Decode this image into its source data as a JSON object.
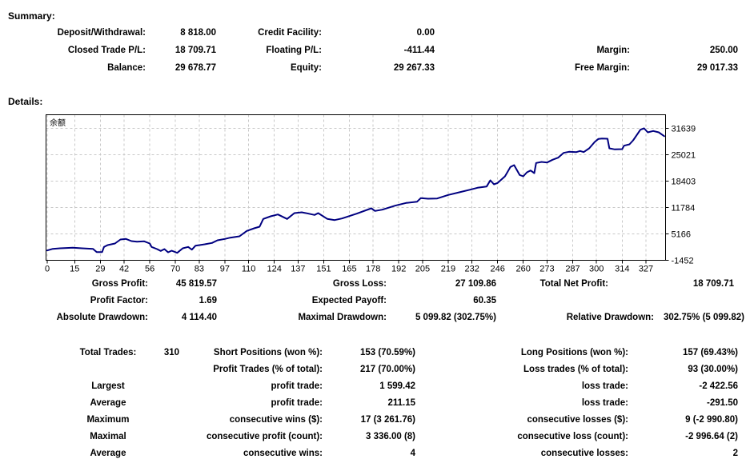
{
  "summary": {
    "heading": "Summary:",
    "rows": [
      [
        "Deposit/Withdrawal:",
        "8 818.00",
        "Credit Facility:",
        "0.00",
        "",
        ""
      ],
      [
        "Closed Trade P/L:",
        "18 709.71",
        "Floating P/L:",
        "-411.44",
        "Margin:",
        "250.00"
      ],
      [
        "Balance:",
        "29 678.77",
        "Equity:",
        "29 267.33",
        "Free Margin:",
        "29 017.33"
      ]
    ]
  },
  "details": {
    "heading": "Details:"
  },
  "results": {
    "rows": [
      [
        "Gross Profit:",
        "45 819.57",
        "Gross Loss:",
        "27 109.86",
        "Total Net Profit:",
        "18 709.71"
      ],
      [
        "Profit Factor:",
        "1.69",
        "Expected Payoff:",
        "60.35",
        "",
        ""
      ],
      [
        "Absolute Drawdown:",
        "4 114.40",
        "Maximal Drawdown:",
        "5 099.82 (302.75%)",
        "Relative Drawdown:",
        "302.75% (5 099.82)"
      ]
    ]
  },
  "trades": {
    "rows": [
      [
        "Total Trades:",
        "310",
        "Short Positions (won %):",
        "153 (70.59%)",
        "Long Positions (won %):",
        "157 (69.43%)"
      ],
      [
        "",
        "",
        "Profit Trades (% of total):",
        "217 (70.00%)",
        "Loss trades (% of total):",
        "93 (30.00%)"
      ],
      [
        "Largest",
        "",
        "profit trade:",
        "1 599.42",
        "loss trade:",
        "-2 422.56"
      ],
      [
        "Average",
        "",
        "profit trade:",
        "211.15",
        "loss trade:",
        "-291.50"
      ],
      [
        "Maximum",
        "",
        "consecutive wins ($):",
        "17 (3 261.76)",
        "consecutive losses ($):",
        "9 (-2 990.80)"
      ],
      [
        "Maximal",
        "",
        "consecutive profit (count):",
        "3 336.00 (8)",
        "consecutive loss (count):",
        "-2 996.64 (2)"
      ],
      [
        "Average",
        "",
        "consecutive wins:",
        "4",
        "consecutive losses:",
        "2"
      ]
    ]
  },
  "chart_data": {
    "type": "line",
    "title": "余额",
    "xlabel": "",
    "ylabel": "",
    "legend": "none",
    "grid": "dashed",
    "line_color": "#000080",
    "grid_color": "#c8c8c8",
    "x_ticks": [
      0,
      15,
      29,
      42,
      56,
      70,
      83,
      97,
      110,
      124,
      137,
      151,
      165,
      178,
      192,
      205,
      219,
      232,
      246,
      260,
      273,
      287,
      300,
      314,
      327
    ],
    "y_ticks": [
      31639,
      25021,
      18403,
      11784,
      5166,
      -1452
    ],
    "xlim": [
      0,
      337
    ],
    "ylim": [
      -1452,
      35048
    ],
    "series": [
      {
        "name": "余额",
        "points": [
          [
            0,
            1015
          ],
          [
            3,
            1420
          ],
          [
            7,
            1560
          ],
          [
            14,
            1700
          ],
          [
            19,
            1560
          ],
          [
            25,
            1420
          ],
          [
            27,
            615
          ],
          [
            30,
            615
          ],
          [
            31,
            1900
          ],
          [
            33,
            2360
          ],
          [
            37,
            2760
          ],
          [
            40,
            3760
          ],
          [
            43,
            3900
          ],
          [
            46,
            3360
          ],
          [
            49,
            3220
          ],
          [
            53,
            3300
          ],
          [
            56,
            2760
          ],
          [
            57,
            1900
          ],
          [
            60,
            1360
          ],
          [
            62,
            900
          ],
          [
            64,
            1360
          ],
          [
            66,
            550
          ],
          [
            68,
            955
          ],
          [
            71,
            415
          ],
          [
            74,
            1560
          ],
          [
            77,
            1900
          ],
          [
            79,
            1215
          ],
          [
            81,
            2220
          ],
          [
            86,
            2560
          ],
          [
            90,
            2900
          ],
          [
            93,
            3560
          ],
          [
            97,
            3900
          ],
          [
            100,
            4225
          ],
          [
            105,
            4565
          ],
          [
            109,
            5910
          ],
          [
            113,
            6570
          ],
          [
            116,
            6970
          ],
          [
            118,
            8915
          ],
          [
            122,
            9580
          ],
          [
            126,
            10040
          ],
          [
            131,
            8915
          ],
          [
            135,
            10380
          ],
          [
            139,
            10580
          ],
          [
            142,
            10320
          ],
          [
            146,
            9920
          ],
          [
            148,
            10380
          ],
          [
            153,
            8915
          ],
          [
            157,
            8635
          ],
          [
            161,
            9035
          ],
          [
            169,
            10240
          ],
          [
            177,
            11580
          ],
          [
            179,
            10920
          ],
          [
            183,
            11240
          ],
          [
            190,
            12245
          ],
          [
            196,
            12925
          ],
          [
            202,
            13250
          ],
          [
            204,
            14130
          ],
          [
            208,
            13990
          ],
          [
            213,
            14050
          ],
          [
            219,
            14930
          ],
          [
            225,
            15595
          ],
          [
            231,
            16255
          ],
          [
            235,
            16735
          ],
          [
            240,
            17060
          ],
          [
            242,
            18600
          ],
          [
            244,
            17600
          ],
          [
            246,
            17940
          ],
          [
            250,
            19605
          ],
          [
            253,
            21950
          ],
          [
            255,
            22415
          ],
          [
            258,
            19945
          ],
          [
            260,
            19605
          ],
          [
            262,
            20610
          ],
          [
            264,
            21070
          ],
          [
            266,
            20405
          ],
          [
            267,
            22955
          ],
          [
            270,
            23215
          ],
          [
            273,
            23075
          ],
          [
            276,
            23755
          ],
          [
            279,
            24280
          ],
          [
            282,
            25480
          ],
          [
            285,
            25760
          ],
          [
            289,
            25680
          ],
          [
            291,
            25965
          ],
          [
            293,
            25680
          ],
          [
            296,
            26625
          ],
          [
            299,
            28230
          ],
          [
            301,
            28970
          ],
          [
            303,
            29090
          ],
          [
            306,
            29030
          ],
          [
            307,
            26625
          ],
          [
            310,
            26365
          ],
          [
            314,
            26425
          ],
          [
            315,
            27285
          ],
          [
            318,
            27625
          ],
          [
            320,
            28630
          ],
          [
            324,
            31295
          ],
          [
            326,
            31639
          ],
          [
            328,
            30635
          ],
          [
            331,
            30975
          ],
          [
            334,
            30635
          ],
          [
            337,
            29680
          ]
        ]
      }
    ]
  }
}
